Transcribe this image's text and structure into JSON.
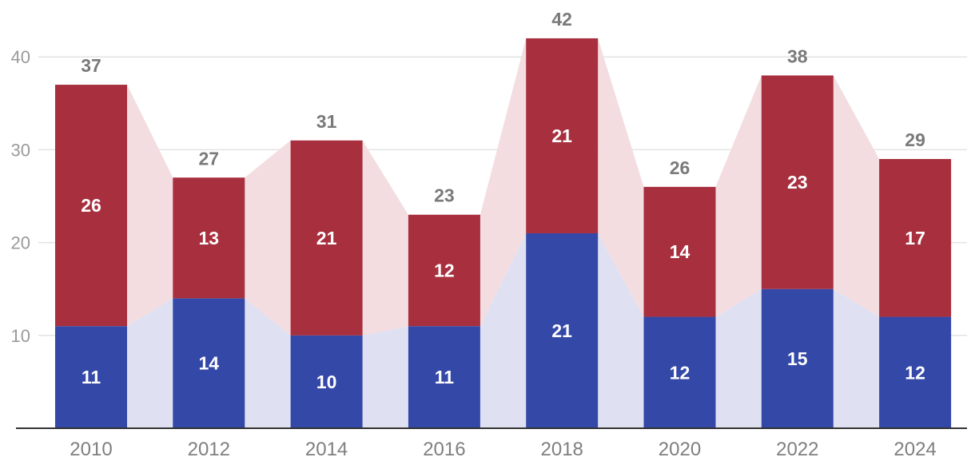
{
  "chart_data": {
    "type": "bar",
    "stacked": true,
    "categories": [
      "2010",
      "2012",
      "2014",
      "2016",
      "2018",
      "2020",
      "2022",
      "2024"
    ],
    "series": [
      {
        "values": [
          11,
          14,
          10,
          11,
          21,
          12,
          15,
          12
        ],
        "color": "#3448a8",
        "band_color": "#dfe1f2"
      },
      {
        "values": [
          26,
          13,
          21,
          12,
          21,
          14,
          23,
          17
        ],
        "color": "#a82f3e",
        "band_color": "#f3dde0"
      }
    ],
    "totals": [
      37,
      27,
      31,
      23,
      42,
      26,
      38,
      29
    ],
    "yticks": [
      10,
      20,
      30,
      40
    ],
    "ylim": [
      0,
      46
    ],
    "grid": true,
    "colors": {
      "grid": "#e3e3e3",
      "axis": "#333333",
      "tick_text": "#9a9a9a",
      "total_text": "#7a7a7a"
    }
  }
}
